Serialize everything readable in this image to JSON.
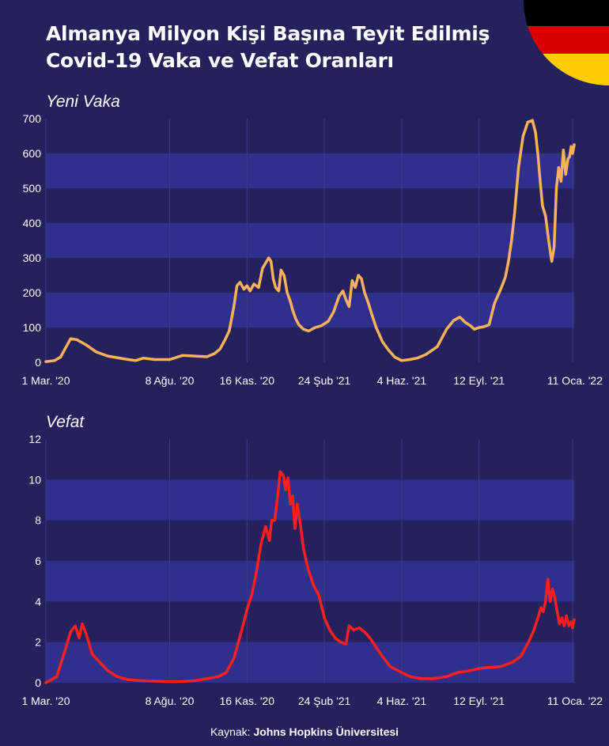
{
  "title_lines": [
    "Almanya Milyon Kişi Başına Teyit Edilmiş",
    "Covid-19 Vaka ve Vefat Oranları"
  ],
  "source": {
    "label": "Kaynak:",
    "name": "Johns Hopkins Üniversitesi"
  },
  "flag_colors": [
    "#000000",
    "#dd0000",
    "#ffcc00"
  ],
  "colors": {
    "background": "#24215c",
    "band": "#302f8c",
    "gridline": "#3d3b88",
    "cases_line": "#f9b25b",
    "deaths_line": "#ff1f1f"
  },
  "chart_data": [
    {
      "type": "line",
      "title": "Yeni Vaka",
      "xlabel": "",
      "ylabel": "",
      "xlim": [
        "2020-03-01",
        "2022-01-13"
      ],
      "ylim": [
        0,
        700
      ],
      "y_ticks": [
        0,
        100,
        200,
        300,
        400,
        500,
        600,
        700
      ],
      "x_ticks": [
        "1 Mar. '20",
        "8 Ağu. '20",
        "16 Kas. '20",
        "24 Şub '21",
        "4 Haz. '21",
        "12 Eyl. '21",
        "11 Oca. '22"
      ],
      "x_tick_dates": [
        "2020-03-01",
        "2020-08-08",
        "2020-11-16",
        "2021-02-24",
        "2021-06-04",
        "2021-09-12",
        "2022-01-11"
      ],
      "grid": true,
      "series": [
        {
          "color": "#f9b25b",
          "x": [
            "2020-03-01",
            "2020-03-12",
            "2020-03-20",
            "2020-03-26",
            "2020-04-02",
            "2020-04-10",
            "2020-04-22",
            "2020-05-05",
            "2020-05-20",
            "2020-06-10",
            "2020-06-25",
            "2020-07-05",
            "2020-07-20",
            "2020-08-08",
            "2020-08-25",
            "2020-09-10",
            "2020-09-25",
            "2020-10-05",
            "2020-10-12",
            "2020-10-18",
            "2020-10-24",
            "2020-10-30",
            "2020-11-03",
            "2020-11-07",
            "2020-11-12",
            "2020-11-16",
            "2020-11-20",
            "2020-11-25",
            "2020-12-01",
            "2020-12-06",
            "2020-12-10",
            "2020-12-14",
            "2020-12-17",
            "2020-12-20",
            "2020-12-23",
            "2020-12-27",
            "2020-12-30",
            "2021-01-03",
            "2021-01-07",
            "2021-01-11",
            "2021-01-14",
            "2021-01-18",
            "2021-01-22",
            "2021-01-28",
            "2021-02-04",
            "2021-02-12",
            "2021-02-20",
            "2021-03-01",
            "2021-03-08",
            "2021-03-15",
            "2021-03-20",
            "2021-03-24",
            "2021-03-28",
            "2021-04-01",
            "2021-04-05",
            "2021-04-09",
            "2021-04-13",
            "2021-04-17",
            "2021-04-22",
            "2021-04-26",
            "2021-05-02",
            "2021-05-10",
            "2021-05-18",
            "2021-05-26",
            "2021-06-04",
            "2021-06-14",
            "2021-06-24",
            "2021-07-05",
            "2021-07-20",
            "2021-08-01",
            "2021-08-10",
            "2021-08-18",
            "2021-08-25",
            "2021-09-01",
            "2021-09-06",
            "2021-09-12",
            "2021-09-18",
            "2021-09-25",
            "2021-10-02",
            "2021-10-10",
            "2021-10-16",
            "2021-10-20",
            "2021-10-24",
            "2021-10-28",
            "2021-11-02",
            "2021-11-08",
            "2021-11-14",
            "2021-11-20",
            "2021-11-24",
            "2021-11-27",
            "2021-11-30",
            "2021-12-03",
            "2021-12-07",
            "2021-12-11",
            "2021-12-15",
            "2021-12-18",
            "2021-12-21",
            "2021-12-24",
            "2021-12-27",
            "2021-12-30",
            "2022-01-02",
            "2022-01-05",
            "2022-01-07",
            "2022-01-09",
            "2022-01-11",
            "2022-01-13"
          ],
          "y": [
            2,
            5,
            15,
            40,
            68,
            65,
            50,
            30,
            18,
            10,
            5,
            12,
            8,
            8,
            20,
            18,
            16,
            25,
            38,
            62,
            90,
            160,
            220,
            230,
            210,
            220,
            205,
            225,
            215,
            270,
            285,
            300,
            290,
            240,
            215,
            205,
            265,
            250,
            200,
            175,
            150,
            125,
            108,
            95,
            90,
            100,
            105,
            118,
            145,
            190,
            205,
            180,
            160,
            235,
            215,
            250,
            240,
            200,
            170,
            140,
            100,
            60,
            35,
            15,
            5,
            8,
            12,
            22,
            45,
            95,
            120,
            130,
            115,
            105,
            95,
            100,
            102,
            108,
            170,
            210,
            245,
            290,
            350,
            430,
            560,
            650,
            690,
            695,
            660,
            600,
            520,
            450,
            420,
            350,
            290,
            330,
            500,
            560,
            520,
            610,
            540,
            585,
            590,
            620,
            600,
            625
          ]
        }
      ]
    },
    {
      "type": "line",
      "title": "Vefat",
      "xlabel": "",
      "ylabel": "",
      "xlim": [
        "2020-03-01",
        "2022-01-13"
      ],
      "ylim": [
        0,
        12
      ],
      "y_ticks": [
        0,
        2,
        4,
        6,
        8,
        10,
        12
      ],
      "x_ticks": [
        "1 Mar. '20",
        "8 Ağu. '20",
        "16 Kas. '20",
        "24 Şub '21",
        "4 Haz. '21",
        "12 Eyl. '21",
        "11 Oca. '22"
      ],
      "x_tick_dates": [
        "2020-03-01",
        "2020-08-08",
        "2020-11-16",
        "2021-02-24",
        "2021-06-04",
        "2021-09-12",
        "2022-01-11"
      ],
      "grid": true,
      "series": [
        {
          "color": "#ff1f1f",
          "x": [
            "2020-03-01",
            "2020-03-15",
            "2020-03-25",
            "2020-04-02",
            "2020-04-08",
            "2020-04-13",
            "2020-04-17",
            "2020-04-22",
            "2020-04-30",
            "2020-05-10",
            "2020-05-20",
            "2020-06-01",
            "2020-06-15",
            "2020-07-01",
            "2020-07-20",
            "2020-08-08",
            "2020-08-25",
            "2020-09-10",
            "2020-09-25",
            "2020-10-10",
            "2020-10-20",
            "2020-10-30",
            "2020-11-05",
            "2020-11-12",
            "2020-11-16",
            "2020-11-22",
            "2020-11-28",
            "2020-12-04",
            "2020-12-10",
            "2020-12-15",
            "2020-12-18",
            "2020-12-22",
            "2020-12-26",
            "2020-12-29",
            "2021-01-02",
            "2021-01-05",
            "2021-01-08",
            "2021-01-11",
            "2021-01-14",
            "2021-01-17",
            "2021-01-20",
            "2021-01-24",
            "2021-01-28",
            "2021-02-03",
            "2021-02-10",
            "2021-02-17",
            "2021-02-24",
            "2021-03-03",
            "2021-03-10",
            "2021-03-17",
            "2021-03-24",
            "2021-03-28",
            "2021-04-03",
            "2021-04-10",
            "2021-04-17",
            "2021-04-24",
            "2021-05-01",
            "2021-05-10",
            "2021-05-20",
            "2021-06-04",
            "2021-06-15",
            "2021-06-30",
            "2021-07-15",
            "2021-08-01",
            "2021-08-15",
            "2021-09-01",
            "2021-09-12",
            "2021-09-25",
            "2021-10-10",
            "2021-10-25",
            "2021-11-05",
            "2021-11-15",
            "2021-11-22",
            "2021-11-28",
            "2021-12-01",
            "2021-12-04",
            "2021-12-07",
            "2021-12-10",
            "2021-12-13",
            "2021-12-16",
            "2021-12-19",
            "2021-12-22",
            "2021-12-25",
            "2021-12-28",
            "2021-12-31",
            "2022-01-03",
            "2022-01-06",
            "2022-01-09",
            "2022-01-11",
            "2022-01-13"
          ],
          "y": [
            0,
            0.3,
            1.5,
            2.5,
            2.8,
            2.2,
            2.9,
            2.4,
            1.4,
            1.0,
            0.6,
            0.3,
            0.15,
            0.1,
            0.08,
            0.05,
            0.06,
            0.1,
            0.2,
            0.3,
            0.5,
            1.2,
            2.0,
            3.0,
            3.6,
            4.3,
            5.4,
            6.8,
            7.7,
            7.0,
            8.0,
            8.0,
            9.3,
            10.4,
            10.2,
            9.5,
            10.1,
            8.8,
            9.2,
            7.6,
            8.8,
            7.8,
            6.6,
            5.6,
            4.8,
            4.3,
            3.2,
            2.6,
            2.2,
            2.0,
            1.9,
            2.8,
            2.6,
            2.7,
            2.5,
            2.2,
            1.8,
            1.3,
            0.8,
            0.5,
            0.3,
            0.2,
            0.2,
            0.3,
            0.5,
            0.6,
            0.7,
            0.75,
            0.8,
            1.0,
            1.3,
            2.0,
            2.6,
            3.3,
            3.7,
            3.5,
            4.0,
            5.1,
            4.0,
            4.6,
            4.2,
            3.5,
            2.9,
            3.2,
            2.8,
            3.3,
            2.8,
            3.0,
            2.7,
            3.1
          ]
        }
      ]
    }
  ]
}
